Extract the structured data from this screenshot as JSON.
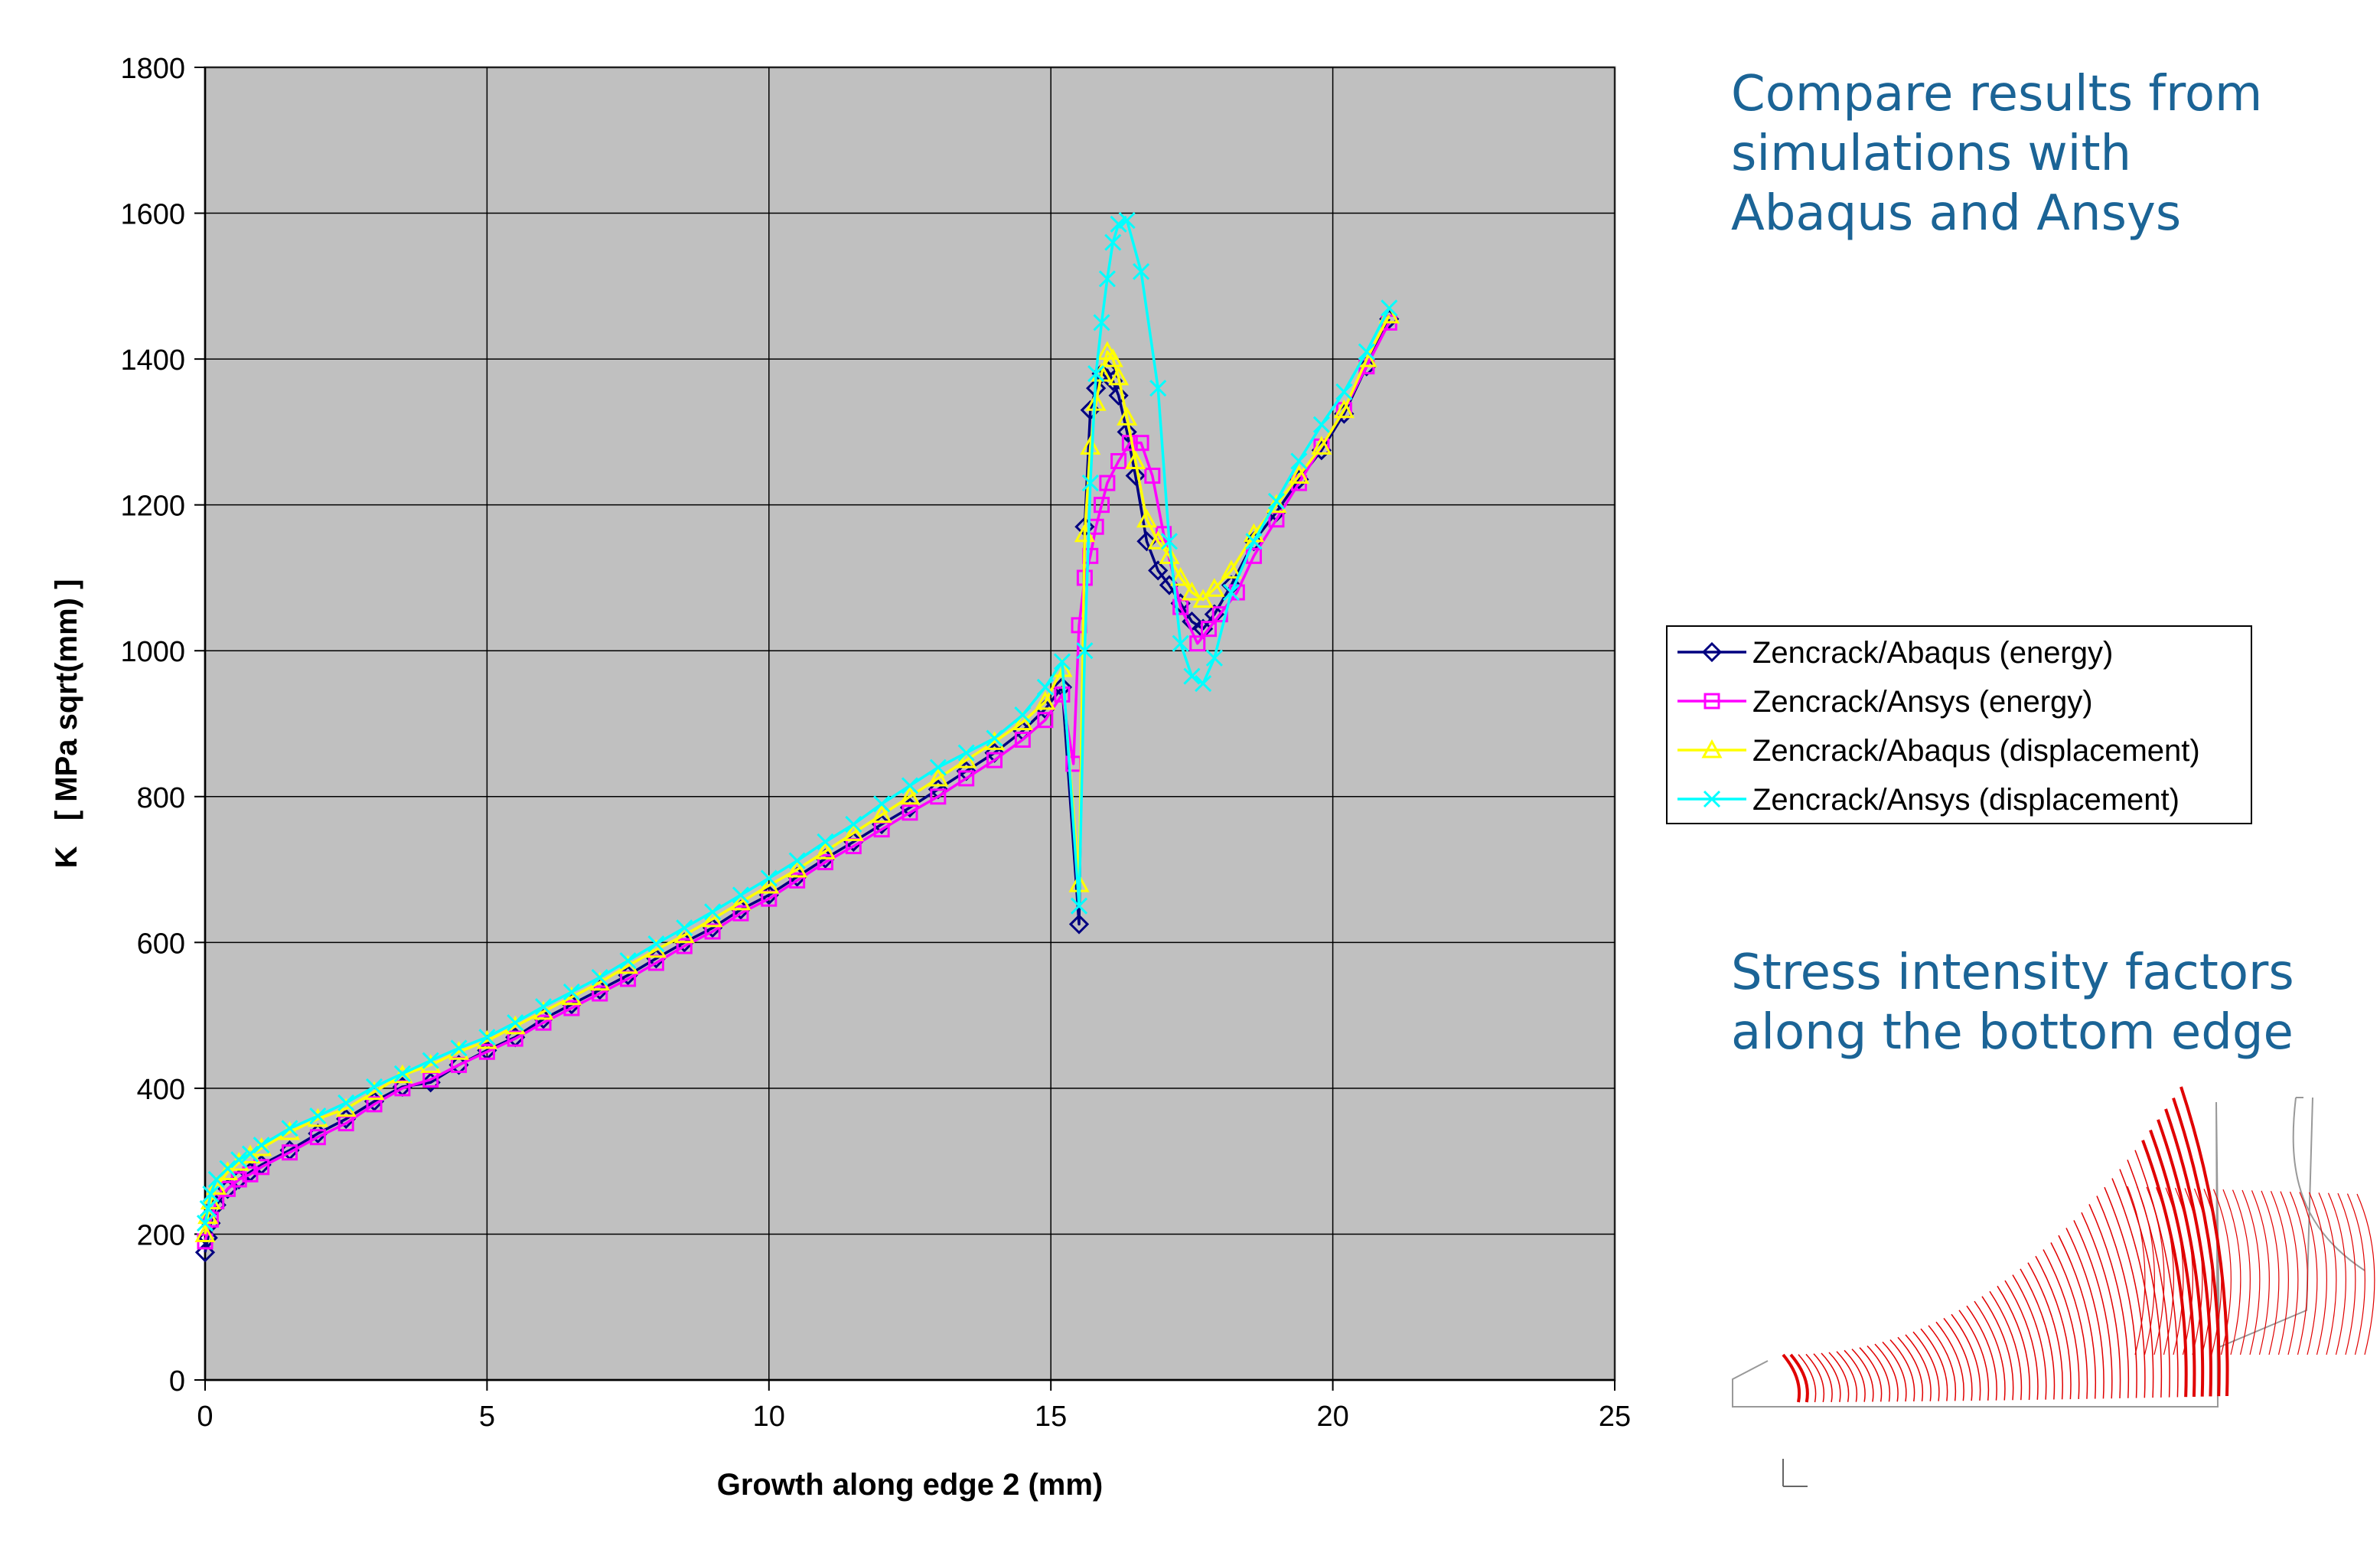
{
  "slide": {
    "headline": "Compare results from\nsimulations with\nAbaqus and Ansys",
    "subhead": "Stress intensity factors\nalong the bottom edge"
  },
  "colors": {
    "plot_background": "#c0c0c0",
    "grid": "#000000",
    "headline_text": "#1b6496",
    "mesh_lines": "#e00000"
  },
  "chart_data": {
    "type": "line",
    "title": "",
    "xlabel": "Growth along edge 2 (mm)",
    "ylabel": "K   [ MPa sqrt(mm) ]",
    "xlim": [
      0,
      25
    ],
    "ylim": [
      0,
      1800
    ],
    "xticks": [
      0,
      5,
      10,
      15,
      20,
      25
    ],
    "yticks": [
      0,
      200,
      400,
      600,
      800,
      1000,
      1200,
      1400,
      1600,
      1800
    ],
    "grid": true,
    "legend_position": "right",
    "series": [
      {
        "name": "Zencrack/Abaqus (energy)",
        "color": "#000080",
        "marker": "diamond",
        "x": [
          0,
          0.05,
          0.1,
          0.2,
          0.4,
          0.6,
          0.8,
          1.0,
          1.5,
          2.0,
          2.5,
          3.0,
          3.5,
          4.0,
          4.5,
          5.0,
          5.5,
          6.0,
          6.5,
          7.0,
          7.5,
          8.0,
          8.5,
          9.0,
          9.5,
          10.0,
          10.5,
          11.0,
          11.5,
          12.0,
          12.5,
          13.0,
          13.5,
          14.0,
          14.5,
          14.9,
          15.2,
          15.5,
          15.6,
          15.7,
          15.8,
          15.9,
          16.0,
          16.1,
          16.2,
          16.35,
          16.5,
          16.7,
          16.9,
          17.1,
          17.3,
          17.5,
          17.7,
          17.9,
          18.2,
          18.6,
          19.0,
          19.4,
          19.8,
          20.2,
          20.6,
          21.0
        ],
        "y": [
          175,
          195,
          215,
          240,
          262,
          275,
          285,
          295,
          315,
          338,
          358,
          382,
          402,
          408,
          432,
          452,
          470,
          495,
          515,
          535,
          555,
          578,
          600,
          620,
          645,
          665,
          690,
          715,
          738,
          762,
          785,
          810,
          835,
          860,
          890,
          920,
          950,
          625,
          1170,
          1330,
          1360,
          1380,
          1385,
          1370,
          1350,
          1300,
          1240,
          1150,
          1110,
          1090,
          1065,
          1040,
          1030,
          1050,
          1090,
          1150,
          1190,
          1235,
          1275,
          1325,
          1390,
          1455
        ]
      },
      {
        "name": "Zencrack/Ansys (energy)",
        "color": "#ff00ff",
        "marker": "square",
        "x": [
          0,
          0.1,
          0.2,
          0.4,
          0.6,
          0.8,
          1.0,
          1.5,
          2.0,
          2.5,
          3.0,
          3.5,
          4.0,
          4.5,
          5.0,
          5.5,
          6.0,
          6.5,
          7.0,
          7.5,
          8.0,
          8.5,
          9.0,
          9.5,
          10.0,
          10.5,
          11.0,
          11.5,
          12.0,
          12.5,
          13.0,
          13.5,
          14.0,
          14.5,
          14.9,
          15.2,
          15.4,
          15.5,
          15.6,
          15.7,
          15.8,
          15.9,
          16.0,
          16.2,
          16.4,
          16.6,
          16.8,
          17.0,
          17.3,
          17.6,
          17.8,
          18.0,
          18.3,
          18.6,
          19.0,
          19.4,
          19.8,
          20.2,
          20.6,
          21.0
        ],
        "y": [
          190,
          220,
          245,
          262,
          275,
          282,
          292,
          312,
          333,
          352,
          378,
          400,
          412,
          432,
          450,
          468,
          490,
          510,
          530,
          550,
          572,
          595,
          615,
          640,
          660,
          685,
          710,
          732,
          755,
          778,
          800,
          825,
          850,
          878,
          905,
          940,
          845,
          1035,
          1100,
          1130,
          1170,
          1200,
          1230,
          1260,
          1285,
          1285,
          1240,
          1160,
          1060,
          1010,
          1030,
          1050,
          1080,
          1130,
          1180,
          1230,
          1280,
          1330,
          1390,
          1450
        ]
      },
      {
        "name": "Zencrack/Abaqus (displacement)",
        "color": "#ffff00",
        "marker": "triangle",
        "x": [
          0,
          0.05,
          0.1,
          0.2,
          0.4,
          0.6,
          0.8,
          1.0,
          1.5,
          2.0,
          2.5,
          3.0,
          3.5,
          4.0,
          4.5,
          5.0,
          5.5,
          6.0,
          6.5,
          7.0,
          7.5,
          8.0,
          8.5,
          9.0,
          9.5,
          10.0,
          10.5,
          11.0,
          11.5,
          12.0,
          12.5,
          13.0,
          13.5,
          14.0,
          14.5,
          14.9,
          15.2,
          15.5,
          15.6,
          15.7,
          15.8,
          15.9,
          16.0,
          16.1,
          16.2,
          16.35,
          16.5,
          16.7,
          16.9,
          17.1,
          17.3,
          17.5,
          17.7,
          17.9,
          18.2,
          18.6,
          19.0,
          19.4,
          19.8,
          20.2,
          20.6,
          21.0
        ],
        "y": [
          200,
          225,
          245,
          265,
          285,
          298,
          308,
          318,
          340,
          358,
          372,
          395,
          418,
          432,
          450,
          465,
          485,
          505,
          525,
          545,
          568,
          590,
          610,
          632,
          655,
          678,
          700,
          725,
          750,
          775,
          800,
          825,
          850,
          875,
          902,
          930,
          975,
          680,
          1160,
          1280,
          1340,
          1380,
          1410,
          1400,
          1375,
          1320,
          1260,
          1180,
          1150,
          1130,
          1100,
          1080,
          1070,
          1085,
          1110,
          1160,
          1200,
          1240,
          1280,
          1330,
          1400,
          1460
        ]
      },
      {
        "name": "Zencrack/Ansys (displacement)",
        "color": "#00ffff",
        "marker": "x",
        "x": [
          0,
          0.05,
          0.1,
          0.2,
          0.4,
          0.6,
          0.8,
          1.0,
          1.5,
          2.0,
          2.5,
          3.0,
          3.5,
          4.0,
          4.5,
          5.0,
          5.5,
          6.0,
          6.5,
          7.0,
          7.5,
          8.0,
          8.5,
          9.0,
          9.5,
          10.0,
          10.5,
          11.0,
          11.5,
          12.0,
          12.5,
          13.0,
          13.5,
          14.0,
          14.5,
          14.9,
          15.2,
          15.5,
          15.6,
          15.7,
          15.8,
          15.9,
          16.0,
          16.1,
          16.2,
          16.35,
          16.6,
          16.9,
          17.1,
          17.3,
          17.5,
          17.7,
          17.9,
          18.2,
          18.6,
          19.0,
          19.4,
          19.8,
          20.2,
          20.6,
          21.0
        ],
        "y": [
          215,
          235,
          255,
          275,
          290,
          302,
          310,
          322,
          345,
          362,
          380,
          402,
          420,
          438,
          455,
          470,
          490,
          512,
          532,
          552,
          575,
          598,
          620,
          642,
          665,
          688,
          712,
          738,
          762,
          790,
          815,
          840,
          860,
          880,
          912,
          950,
          985,
          650,
          1000,
          1230,
          1380,
          1450,
          1510,
          1560,
          1585,
          1590,
          1520,
          1360,
          1150,
          1010,
          965,
          955,
          990,
          1080,
          1150,
          1205,
          1260,
          1310,
          1355,
          1410,
          1470
        ]
      }
    ]
  }
}
